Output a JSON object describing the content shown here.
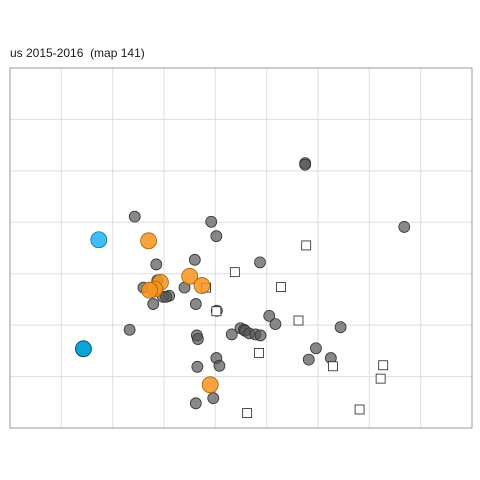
{
  "chart_data": {
    "type": "scatter",
    "title": "us 2015-2016  (map 141)",
    "xlabel": "",
    "ylabel": "",
    "grid": true,
    "legend": "none",
    "colors": {
      "grey": "#555555",
      "orange": "#f7931e",
      "light_blue": "#29b6f6",
      "blue": "#0aa3dc",
      "grid": "#dedede",
      "frame": "#9a9a9a",
      "square_stroke": "#222222"
    },
    "series": [
      {
        "marker": "circle-grey",
        "points": [
          [
            5.75,
            1.85
          ],
          [
            5.75,
            1.88
          ],
          [
            2.43,
            2.89
          ],
          [
            3.92,
            2.99
          ],
          [
            4.02,
            3.27
          ],
          [
            7.68,
            3.09
          ],
          [
            2.85,
            3.82
          ],
          [
            3.6,
            3.73
          ],
          [
            4.87,
            3.78
          ],
          [
            2.87,
            4.13
          ],
          [
            2.6,
            4.27
          ],
          [
            3.4,
            4.27
          ],
          [
            3.1,
            4.43
          ],
          [
            2.98,
            4.45
          ],
          [
            3.04,
            4.45
          ],
          [
            2.79,
            4.59
          ],
          [
            3.62,
            4.59
          ],
          [
            4.03,
            4.72
          ],
          [
            5.05,
            4.82
          ],
          [
            5.17,
            4.98
          ],
          [
            6.44,
            5.04
          ],
          [
            2.33,
            5.09
          ],
          [
            4.49,
            5.06
          ],
          [
            4.56,
            5.09
          ],
          [
            4.58,
            5.11
          ],
          [
            4.66,
            5.16
          ],
          [
            4.78,
            5.18
          ],
          [
            4.88,
            5.2
          ],
          [
            3.64,
            5.2
          ],
          [
            4.32,
            5.18
          ],
          [
            3.66,
            5.27
          ],
          [
            5.96,
            5.45
          ],
          [
            6.25,
            5.64
          ],
          [
            5.82,
            5.67
          ],
          [
            4.02,
            5.64
          ],
          [
            4.08,
            5.79
          ],
          [
            3.65,
            5.81
          ],
          [
            3.96,
            6.42
          ],
          [
            3.62,
            6.52
          ]
        ]
      },
      {
        "marker": "square-open",
        "points": [
          [
            5.77,
            3.45
          ],
          [
            4.38,
            3.97
          ],
          [
            3.82,
            4.27
          ],
          [
            5.28,
            4.26
          ],
          [
            4.02,
            4.73
          ],
          [
            5.62,
            4.91
          ],
          [
            4.85,
            5.54
          ],
          [
            6.29,
            5.8
          ],
          [
            7.27,
            5.78
          ],
          [
            7.22,
            6.04
          ],
          [
            6.81,
            6.64
          ],
          [
            4.62,
            6.71
          ]
        ]
      },
      {
        "marker": "circle-orange",
        "points": [
          [
            2.7,
            3.36
          ],
          [
            3.5,
            4.05
          ],
          [
            3.74,
            4.23
          ],
          [
            2.93,
            4.17
          ],
          [
            2.82,
            4.3
          ],
          [
            2.72,
            4.32
          ],
          [
            3.9,
            6.16
          ]
        ]
      },
      {
        "marker": "circle-light-blue",
        "points": [
          [
            1.73,
            3.34
          ]
        ]
      },
      {
        "marker": "circle-blue",
        "points": [
          [
            1.43,
            5.46
          ]
        ]
      }
    ],
    "xlim": [
      0,
      9
    ],
    "ylim": [
      0,
      7
    ]
  }
}
